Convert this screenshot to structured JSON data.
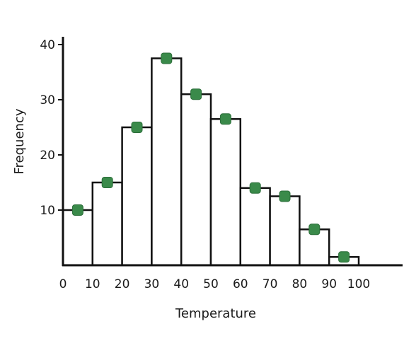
{
  "chart_data": {
    "type": "bar",
    "title": "",
    "xlabel": "Temperature",
    "ylabel": "Frequency",
    "bin_edges": [
      0,
      10,
      20,
      30,
      40,
      50,
      60,
      70,
      80,
      90,
      100
    ],
    "x_tick_labels": [
      "0",
      "10",
      "20",
      "30",
      "40",
      "50",
      "60",
      "70",
      "80",
      "90",
      "100"
    ],
    "y_ticks": [
      10,
      20,
      30,
      40
    ],
    "y_tick_labels": [
      "10",
      "20",
      "30",
      "40"
    ],
    "xlim": [
      0,
      115
    ],
    "ylim": [
      0,
      42
    ],
    "grid": false,
    "values": [
      10,
      15,
      25,
      37.5,
      31,
      26.5,
      14,
      12.5,
      6.5,
      1.5
    ],
    "midpoints": [
      5,
      15,
      25,
      35,
      45,
      55,
      65,
      75,
      85,
      95
    ],
    "marker_color": "#3a8a4a",
    "bar_fill": "#ffffff",
    "bar_stroke": "#111111"
  }
}
